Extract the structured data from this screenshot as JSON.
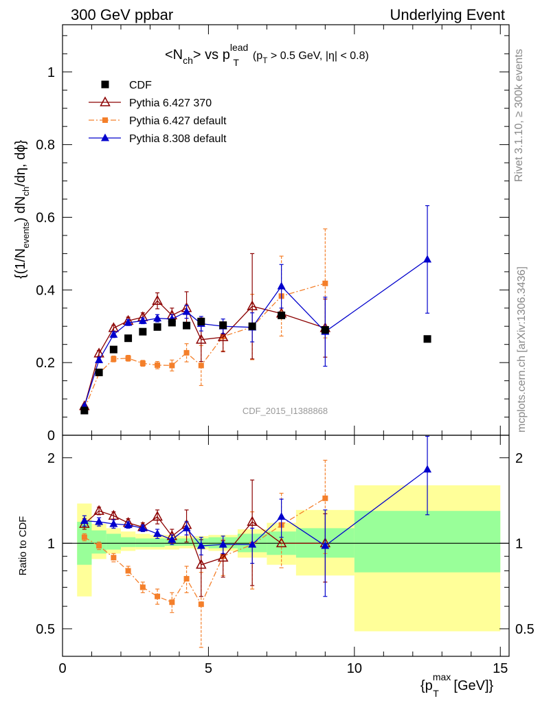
{
  "header": {
    "left": "300 GeV ppbar",
    "right": "Underlying Event"
  },
  "title": {
    "main": "<N",
    "main_sub": "ch",
    "mid": "> vs p",
    "sup": "lead",
    "sub": "T",
    "cut_open": "(p",
    "cut_sub": "T",
    "cut_rest": " > 0.5 GeV, |η| < 0.8)"
  },
  "side_labels": {
    "rivet": "Rivet 3.1.10, ≥ 300k events",
    "mcplots": "mcplots.cern.ch [arXiv:1306.3436]"
  },
  "watermark": "CDF_2015_I1388868",
  "chart_data": [
    {
      "type": "scatter",
      "panel": "main",
      "ylabel": {
        "p1": "{(1/N",
        "p1_sub": "events",
        "p2": ") dN",
        "p2_sub": "ch",
        "p3": "/dη, dϕ}"
      },
      "xlim": [
        0,
        15.3
      ],
      "ylim": [
        0,
        1.13
      ],
      "yticks": [
        "0",
        "0.2",
        "0.4",
        "0.6",
        "0.8",
        "1"
      ],
      "grid": false,
      "legend_position": "top-left",
      "series": [
        {
          "name": "CDF",
          "color": "#000000",
          "marker": "square",
          "line": "none",
          "x": [
            0.75,
            1.25,
            1.75,
            2.25,
            2.75,
            3.25,
            3.75,
            4.25,
            4.75,
            5.5,
            6.5,
            7.5,
            9.0,
            12.5
          ],
          "y": [
            0.068,
            0.173,
            0.236,
            0.267,
            0.285,
            0.298,
            0.31,
            0.302,
            0.313,
            0.303,
            0.3,
            0.33,
            0.29,
            0.265
          ]
        },
        {
          "name": "Pythia 6.427 370",
          "color": "#8b0000",
          "marker": "triangle-open",
          "line": "solid",
          "x": [
            0.75,
            1.25,
            1.75,
            2.25,
            2.75,
            3.25,
            3.75,
            4.25,
            4.75,
            5.5,
            6.5,
            7.5,
            9.0
          ],
          "y": [
            0.08,
            0.225,
            0.295,
            0.315,
            0.325,
            0.37,
            0.33,
            0.35,
            0.263,
            0.27,
            0.355,
            0.335,
            0.295
          ],
          "err": [
            0.004,
            0.008,
            0.008,
            0.01,
            0.012,
            0.022,
            0.02,
            0.045,
            0.06,
            0.04,
            0.145,
            0.0,
            0.08
          ]
        },
        {
          "name": "Pythia 6.427 default",
          "color": "#f47f2a",
          "marker": "square-small",
          "line": "dashdot",
          "x": [
            0.75,
            1.25,
            1.75,
            2.25,
            2.75,
            3.25,
            3.75,
            4.25,
            4.75,
            5.5,
            6.5,
            7.5,
            9.0
          ],
          "y": [
            0.072,
            0.17,
            0.21,
            0.212,
            0.198,
            0.193,
            0.192,
            0.227,
            0.192,
            0.272,
            0.298,
            0.383,
            0.418
          ],
          "err": [
            0.003,
            0.006,
            0.008,
            0.008,
            0.008,
            0.01,
            0.015,
            0.025,
            0.055,
            0.04,
            0.09,
            0.11,
            0.15
          ]
        },
        {
          "name": "Pythia 8.308 default",
          "color": "#0000cc",
          "marker": "triangle",
          "line": "solid",
          "x": [
            0.75,
            1.25,
            1.75,
            2.25,
            2.75,
            3.25,
            3.75,
            4.25,
            4.75,
            5.5,
            6.5,
            7.5,
            9.0,
            12.5
          ],
          "y": [
            0.08,
            0.207,
            0.277,
            0.31,
            0.315,
            0.322,
            0.32,
            0.34,
            0.307,
            0.3,
            0.297,
            0.41,
            0.285,
            0.484
          ],
          "err": [
            0.004,
            0.007,
            0.008,
            0.008,
            0.008,
            0.01,
            0.012,
            0.018,
            0.02,
            0.02,
            0.04,
            0.06,
            0.095,
            0.148
          ]
        }
      ]
    },
    {
      "type": "scatter",
      "panel": "ratio",
      "ylabel": "Ratio to CDF",
      "xlabel": {
        "open": "{p",
        "sub": "T",
        "sup": "max",
        "rest": " [GeV]}"
      },
      "xlim": [
        0,
        15.3
      ],
      "ylim": [
        0.4,
        2.4
      ],
      "yscale": "log",
      "yticks": [
        "0.5",
        "1",
        "2"
      ],
      "xticks": [
        "0",
        "5",
        "10",
        "15"
      ],
      "reference_line": 1.0,
      "bands": {
        "edges": [
          0.5,
          1.0,
          1.5,
          2.0,
          2.5,
          3.0,
          3.5,
          4.0,
          4.5,
          5.0,
          6.0,
          7.0,
          8.0,
          10.0,
          15.0
        ],
        "yellow_low": [
          0.65,
          0.88,
          0.92,
          0.94,
          0.95,
          0.95,
          0.95,
          0.96,
          0.95,
          0.94,
          0.89,
          0.84,
          0.77,
          0.49
        ],
        "yellow_high": [
          1.38,
          1.17,
          1.13,
          1.1,
          1.08,
          1.07,
          1.07,
          1.06,
          1.06,
          1.07,
          1.12,
          1.18,
          1.31,
          1.6
        ],
        "green_low": [
          0.84,
          0.92,
          0.95,
          0.97,
          0.97,
          0.97,
          0.98,
          0.98,
          0.97,
          0.96,
          0.93,
          0.91,
          0.89,
          0.79
        ],
        "green_high": [
          1.19,
          1.11,
          1.08,
          1.05,
          1.04,
          1.04,
          1.04,
          1.04,
          1.04,
          1.05,
          1.08,
          1.1,
          1.13,
          1.3
        ]
      },
      "series": [
        {
          "name": "Pythia 6.427 370",
          "color": "#8b0000",
          "marker": "triangle-open",
          "line": "solid",
          "x": [
            0.75,
            1.25,
            1.75,
            2.25,
            2.75,
            3.25,
            3.75,
            4.25,
            4.75,
            5.5,
            6.5,
            7.5,
            9.0
          ],
          "y": [
            1.17,
            1.3,
            1.25,
            1.18,
            1.14,
            1.24,
            1.06,
            1.16,
            0.84,
            0.89,
            1.19,
            1.0,
            1.0
          ],
          "err": [
            0.05,
            0.04,
            0.04,
            0.04,
            0.04,
            0.07,
            0.06,
            0.15,
            0.19,
            0.13,
            0.48,
            0.0,
            0.27
          ]
        },
        {
          "name": "Pythia 6.427 default",
          "color": "#f47f2a",
          "marker": "square-small",
          "line": "dashdot",
          "x": [
            0.75,
            1.25,
            1.75,
            2.25,
            2.75,
            3.25,
            3.75,
            4.25,
            4.75,
            5.5,
            6.5,
            7.5,
            9.0
          ],
          "y": [
            1.05,
            0.98,
            0.89,
            0.8,
            0.7,
            0.65,
            0.62,
            0.75,
            0.61,
            0.9,
            0.99,
            1.16,
            1.44
          ],
          "err": [
            0.03,
            0.03,
            0.03,
            0.03,
            0.03,
            0.04,
            0.05,
            0.08,
            0.18,
            0.13,
            0.3,
            0.34,
            0.52
          ]
        },
        {
          "name": "Pythia 8.308 default",
          "color": "#0000cc",
          "marker": "triangle",
          "line": "solid",
          "x": [
            0.75,
            1.25,
            1.75,
            2.25,
            2.75,
            3.25,
            3.75,
            4.25,
            4.75,
            5.5,
            6.5,
            7.5,
            9.0,
            12.5
          ],
          "y": [
            1.2,
            1.19,
            1.17,
            1.16,
            1.13,
            1.08,
            1.03,
            1.13,
            0.98,
            0.99,
            0.99,
            1.24,
            0.98,
            1.82
          ],
          "err": [
            0.05,
            0.04,
            0.04,
            0.03,
            0.03,
            0.04,
            0.04,
            0.06,
            0.07,
            0.07,
            0.14,
            0.19,
            0.33,
            0.56
          ]
        }
      ]
    }
  ]
}
